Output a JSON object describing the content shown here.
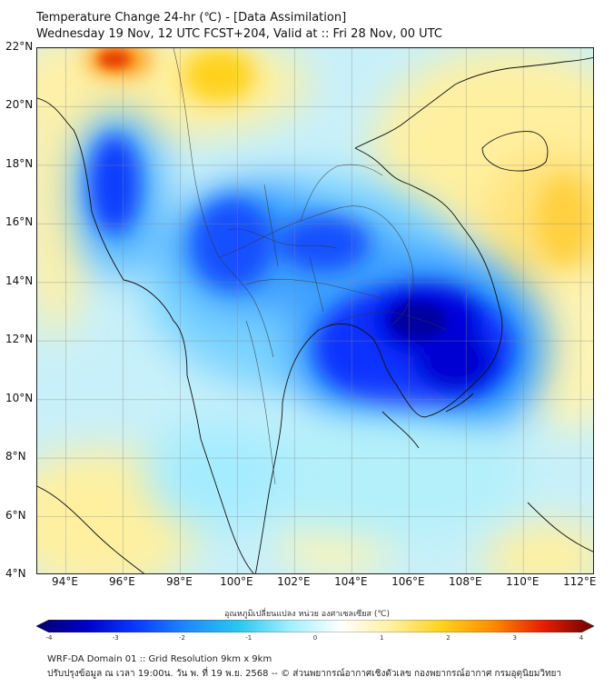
{
  "header": {
    "title": "Temperature Change 24-hr (℃) - [Data Assimilation]",
    "subtitle": "Wednesday 19 Nov, 12 UTC FCST+204, Valid at :: Fri 28 Nov, 00 UTC"
  },
  "map": {
    "lat_labels": [
      "22°N",
      "20°N",
      "18°N",
      "16°N",
      "14°N",
      "12°N",
      "10°N",
      "8°N",
      "6°N",
      "4°N"
    ],
    "lon_labels": [
      "94°E",
      "96°E",
      "98°E",
      "100°E",
      "102°E",
      "104°E",
      "106°E",
      "108°E",
      "110°E",
      "112°E"
    ],
    "lat_range": [
      4,
      22
    ],
    "lon_range": [
      93,
      112.5
    ]
  },
  "colorbar": {
    "title": "อุณหภูมิเปลี่ยนแปลง หน่วย องศาเซลเซียส (℃)",
    "ticks": [
      "-4",
      "-3",
      "-2",
      "-1",
      "0",
      "1",
      "2",
      "3",
      "4"
    ],
    "min": -4,
    "max": 4,
    "colors": [
      "#05006b",
      "#0000c8",
      "#0a3cff",
      "#1e8cff",
      "#28c8f0",
      "#a0f0ff",
      "#ffffff",
      "#fff0a0",
      "#ffd21e",
      "#ff8c00",
      "#e61e00",
      "#6e0000"
    ]
  },
  "footer": {
    "line1": "WRF-DA Domain 01 :: Grid Resolution 9km x 9km",
    "line2": "ปรับปรุงข้อมูล ณ เวลา 19:00น. วัน พ. ที่ 19 พ.ย. 2568 -- © ส่วนพยากรณ์อากาศเชิงตัวเลข กองพยากรณ์อากาศ กรมอุตุนิยมวิทยา"
  }
}
